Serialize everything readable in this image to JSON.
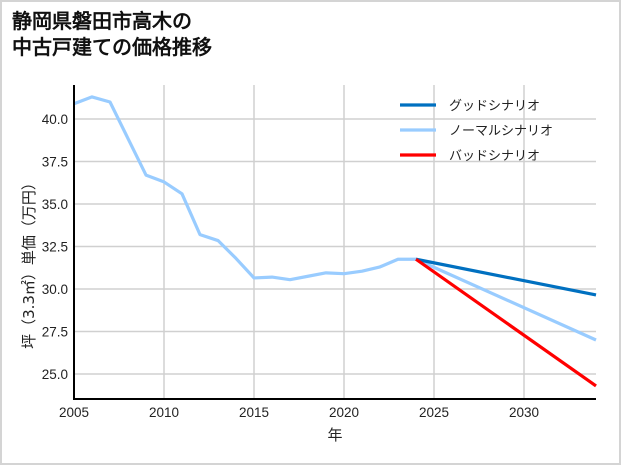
{
  "title_lines": [
    "静岡県磐田市高木の",
    "中古戸建ての価格推移"
  ],
  "chart_data": {
    "type": "line",
    "title": "静岡県磐田市高木の中古戸建ての価格推移",
    "xlabel": "年",
    "ylabel": "坪（3.3㎡）単価（万円）",
    "xlim": [
      2005,
      2034
    ],
    "ylim": [
      23.4,
      42.0
    ],
    "xticks": [
      2005,
      2010,
      2015,
      2020,
      2025,
      2030
    ],
    "yticks": [
      25.0,
      27.5,
      30.0,
      32.5,
      35.0,
      37.5,
      40.0
    ],
    "ytick_labels": [
      "25.0",
      "27.5",
      "30.0",
      "32.5",
      "35.0",
      "37.5",
      "40.0"
    ],
    "grid": true,
    "legend_position": "upper right",
    "series": [
      {
        "name": "ノーマルシナリオ",
        "color": "#99ccff",
        "x": [
          2005,
          2006,
          2007,
          2008,
          2009,
          2010,
          2011,
          2012,
          2013,
          2014,
          2015,
          2016,
          2017,
          2018,
          2019,
          2020,
          2021,
          2022,
          2023,
          2024,
          2034
        ],
        "values": [
          40.9,
          41.3,
          41.0,
          38.85,
          36.7,
          36.3,
          35.6,
          33.2,
          32.85,
          31.8,
          30.65,
          30.7,
          30.55,
          30.75,
          30.95,
          30.9,
          31.05,
          31.3,
          31.75,
          31.75,
          27.0
        ]
      },
      {
        "name": "グッドシナリオ",
        "color": "#0070c0",
        "x": [
          2024,
          2034
        ],
        "values": [
          31.75,
          29.65
        ]
      },
      {
        "name": "バッドシナリオ",
        "color": "#ff0000",
        "x": [
          2024,
          2034
        ],
        "values": [
          31.75,
          24.3
        ]
      }
    ],
    "legend": [
      "グッドシナリオ",
      "ノーマルシナリオ",
      "バッドシナリオ"
    ]
  }
}
